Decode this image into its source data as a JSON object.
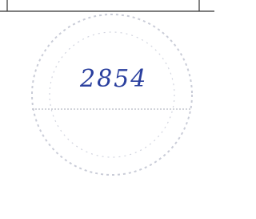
{
  "handwritten_note": "2854"
}
